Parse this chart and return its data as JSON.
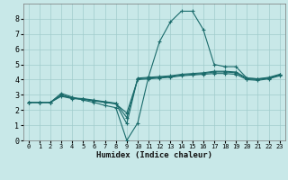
{
  "xlabel": "Humidex (Indice chaleur)",
  "xlim": [
    -0.5,
    23.5
  ],
  "ylim": [
    0,
    9
  ],
  "xticks": [
    0,
    1,
    2,
    3,
    4,
    5,
    6,
    7,
    8,
    9,
    10,
    11,
    12,
    13,
    14,
    15,
    16,
    17,
    18,
    19,
    20,
    21,
    22,
    23
  ],
  "yticks": [
    0,
    1,
    2,
    3,
    4,
    5,
    6,
    7,
    8
  ],
  "bg_color": "#c8e8e8",
  "grid_color": "#a0cccc",
  "line_color": "#1a6b6b",
  "curve1_x": [
    0,
    1,
    2,
    3,
    4,
    5,
    6,
    7,
    8,
    9,
    10,
    11,
    12,
    13,
    14,
    15,
    16,
    17,
    18,
    19,
    20,
    21,
    22,
    23
  ],
  "curve1_y": [
    2.5,
    2.5,
    2.5,
    3.1,
    2.85,
    2.65,
    2.5,
    2.3,
    2.15,
    0.0,
    1.15,
    4.2,
    6.5,
    7.8,
    8.5,
    8.5,
    7.3,
    5.0,
    4.85,
    4.85,
    4.1,
    4.05,
    4.1,
    4.3
  ],
  "curve2_x": [
    0,
    1,
    2,
    3,
    4,
    5,
    6,
    7,
    8,
    9,
    10,
    11,
    12,
    13,
    14,
    15,
    16,
    17,
    18,
    19,
    20,
    21,
    22,
    23
  ],
  "curve2_y": [
    2.5,
    2.5,
    2.5,
    2.9,
    2.75,
    2.7,
    2.6,
    2.5,
    2.4,
    1.8,
    4.0,
    4.05,
    4.1,
    4.15,
    4.25,
    4.3,
    4.35,
    4.4,
    4.4,
    4.35,
    4.0,
    3.95,
    4.05,
    4.25
  ],
  "curve3_x": [
    0,
    1,
    2,
    3,
    4,
    5,
    6,
    7,
    8,
    9,
    10,
    11,
    12,
    13,
    14,
    15,
    16,
    17,
    18,
    19,
    20,
    21,
    22,
    23
  ],
  "curve3_y": [
    2.5,
    2.5,
    2.5,
    3.0,
    2.8,
    2.75,
    2.65,
    2.55,
    2.45,
    1.5,
    4.05,
    4.1,
    4.15,
    4.2,
    4.3,
    4.35,
    4.4,
    4.5,
    4.5,
    4.45,
    4.05,
    4.0,
    4.1,
    4.3
  ],
  "curve4_x": [
    0,
    1,
    2,
    3,
    4,
    5,
    6,
    7,
    8,
    9,
    10,
    11,
    12,
    13,
    14,
    15,
    16,
    17,
    18,
    19,
    20,
    21,
    22,
    23
  ],
  "curve4_y": [
    2.5,
    2.5,
    2.5,
    2.95,
    2.78,
    2.72,
    2.62,
    2.52,
    2.42,
    1.1,
    4.1,
    4.15,
    4.2,
    4.25,
    4.35,
    4.4,
    4.45,
    4.55,
    4.55,
    4.5,
    4.1,
    4.05,
    4.15,
    4.35
  ]
}
